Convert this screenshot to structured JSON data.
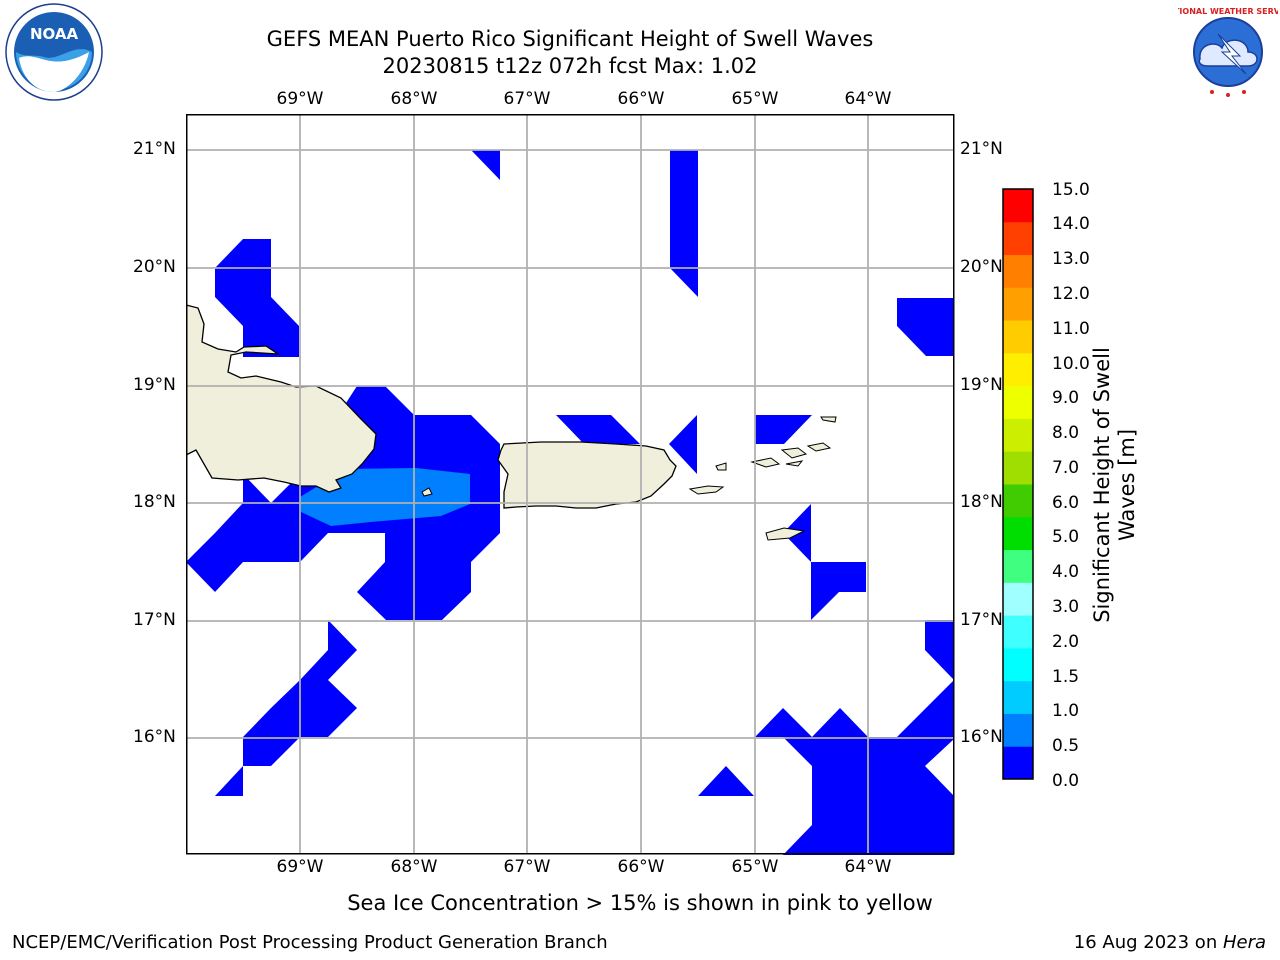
{
  "title_line1": "GEFS MEAN Puerto Rico Significant Height of Swell Waves",
  "title_line2": "20230815 t12z 072h fcst   Max: 1.02",
  "lon_labels": [
    "69°W",
    "68°W",
    "67°W",
    "66°W",
    "65°W",
    "64°W"
  ],
  "lat_labels": [
    "21°N",
    "20°N",
    "19°N",
    "18°N",
    "17°N",
    "16°N"
  ],
  "colorbar": {
    "title_line1": "Significant Height of Swell",
    "title_line2": "Waves [m]",
    "tick_labels": [
      "0.0",
      "0.5",
      "1.0",
      "1.5",
      "2.0",
      "3.0",
      "4.0",
      "5.0",
      "6.0",
      "7.0",
      "8.0",
      "9.0",
      "10.0",
      "11.0",
      "12.0",
      "13.0",
      "14.0",
      "15.0"
    ],
    "colors": [
      "#0000ff",
      "#0080ff",
      "#00ccff",
      "#00ffff",
      "#40ffff",
      "#a0ffff",
      "#40ff80",
      "#00dd00",
      "#40cc00",
      "#a0dd00",
      "#ccee00",
      "#eeff00",
      "#ffee00",
      "#ffcc00",
      "#ffa000",
      "#ff8000",
      "#ff4000",
      "#ff0000"
    ]
  },
  "note": "Sea Ice Concentration > 15% is shown in pink to yellow",
  "credit": "NCEP/EMC/Verification Post Processing Product Generation Branch",
  "date_prefix": "16 Aug 2023 on ",
  "date_host": "Hera",
  "logo_left": {
    "name": "noaa-logo",
    "text": "NOAA"
  },
  "logo_right": {
    "name": "nws-logo",
    "text": "NATIONAL WEATHER SERVICE"
  },
  "land_color": "#efefdc",
  "swell_low_color": "#0000ff",
  "swell_mid_color": "#0080ff"
}
